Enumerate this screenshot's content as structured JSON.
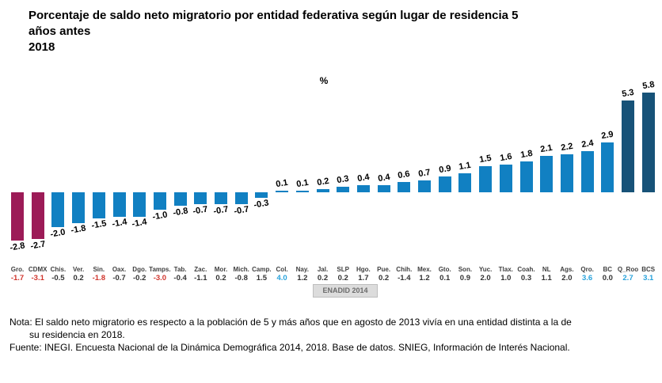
{
  "title": {
    "line1": "Porcentaje de saldo neto migratorio por entidad federativa según lugar de residencia 5",
    "line2": "años antes",
    "line3": "2018"
  },
  "chart_data": {
    "type": "bar",
    "title": "Porcentaje de saldo neto migratorio por entidad federativa según lugar de residencia 5 años antes",
    "subtitle": "2018",
    "axis_unit_label": "%",
    "grid": false,
    "ylim": [
      -3.2,
      6.2
    ],
    "legend_position": "below-axis",
    "categories": [
      "Gro.",
      "CDMX",
      "Chis.",
      "Ver.",
      "Sin.",
      "Oax.",
      "Dgo.",
      "Tamps.",
      "Tab.",
      "Zac.",
      "Mor.",
      "Mich.",
      "Camp.",
      "Col.",
      "Nay.",
      "Jal.",
      "SLP",
      "Hgo.",
      "Pue.",
      "Chih.",
      "Mex.",
      "Gto.",
      "Son.",
      "Yuc.",
      "Tlax.",
      "Coah.",
      "NL",
      "Ags.",
      "Qro.",
      "BC",
      "Q_Roo",
      "BCS"
    ],
    "series": [
      {
        "name": "2018",
        "display": "bars-with-data-labels",
        "values": [
          -2.8,
          -2.7,
          -2.0,
          -1.8,
          -1.5,
          -1.4,
          -1.4,
          -1.0,
          -0.8,
          -0.7,
          -0.7,
          -0.7,
          -0.3,
          0.1,
          0.1,
          0.2,
          0.3,
          0.4,
          0.4,
          0.6,
          0.7,
          0.9,
          1.1,
          1.5,
          1.6,
          1.8,
          2.1,
          2.2,
          2.4,
          2.9,
          5.3,
          5.8
        ]
      },
      {
        "name": "ENADID 2014",
        "display": "axis-value-row",
        "values": [
          -1.7,
          -3.1,
          -0.5,
          0.2,
          -1.8,
          -0.7,
          -0.2,
          -3.0,
          -0.4,
          -1.1,
          0.2,
          -0.8,
          1.5,
          4.0,
          1.2,
          0.2,
          0.2,
          1.7,
          0.2,
          -1.4,
          1.2,
          0.1,
          0.9,
          2.0,
          1.0,
          0.3,
          1.1,
          2.0,
          3.6,
          0.0,
          2.7,
          3.1
        ]
      }
    ],
    "colors": {
      "bar_default": "#1180c2",
      "bar_negative_highlight": "#9c1b57",
      "bar_positive_highlight": "#175278",
      "value2014_default": "#333333",
      "value2014_negative_highlight": "#d0352d",
      "value2014_positive_highlight": "#29a3dc"
    },
    "bar_highlight_maroon_indices": [
      0,
      1
    ],
    "bar_highlight_navy_indices": [
      30,
      31
    ],
    "value2014_red_indices": [
      0,
      1,
      4,
      7
    ],
    "value2014_blue_indices": [
      13,
      28,
      30,
      31
    ]
  },
  "footer": {
    "note_line1": "Nota: El saldo neto migratorio es respecto a la población de 5 y más años que en agosto de 2013 vivía en una entidad distinta a la de",
    "note_line2": "su residencia en 2018.",
    "fuente": "Fuente: INEGI. Encuesta Nacional de la Dinámica Demográfica 2014, 2018. Base de datos. SNIEG, Información de Interés Nacional."
  }
}
